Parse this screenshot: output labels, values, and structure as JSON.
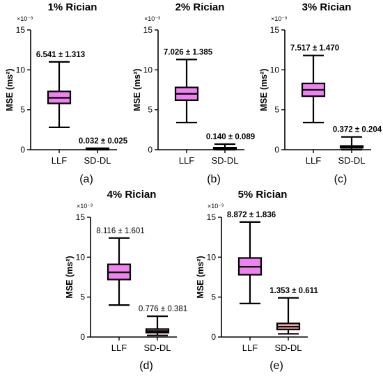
{
  "chart_data": [
    {
      "type": "boxplot",
      "title": "1% Rician",
      "caption": "(a)",
      "ylabel": "MSE (ms²)",
      "exponent_label": "×10⁻³",
      "ylim": [
        0,
        15
      ],
      "yticks": [
        "0",
        "5",
        "10",
        "15"
      ],
      "categories": [
        "LLF",
        "SD-DL"
      ],
      "annotations_bold": true,
      "boxes": [
        {
          "category": "LLF",
          "whisker_low": 2.8,
          "q1": 5.8,
          "median": 6.5,
          "q3": 7.3,
          "whisker_high": 11.0,
          "annotation": "6.541 ± 1.313"
        },
        {
          "category": "SD-DL",
          "whisker_low": 0.0,
          "q1": 0.01,
          "median": 0.03,
          "q3": 0.05,
          "whisker_high": 0.16,
          "annotation": "0.032 ± 0.025"
        }
      ]
    },
    {
      "type": "boxplot",
      "title": "2% Rician",
      "caption": "(b)",
      "ylabel": "MSE (ms²)",
      "exponent_label": "×10⁻³",
      "ylim": [
        0,
        15
      ],
      "yticks": [
        "0",
        "5",
        "10",
        "15"
      ],
      "categories": [
        "LLF",
        "SD-DL"
      ],
      "annotations_bold": true,
      "boxes": [
        {
          "category": "LLF",
          "whisker_low": 3.4,
          "q1": 6.2,
          "median": 7.0,
          "q3": 7.8,
          "whisker_high": 11.3,
          "annotation": "7.026 ± 1.385"
        },
        {
          "category": "SD-DL",
          "whisker_low": 0.0,
          "q1": 0.08,
          "median": 0.13,
          "q3": 0.2,
          "whisker_high": 0.7,
          "annotation": "0.140 ± 0.089"
        }
      ]
    },
    {
      "type": "boxplot",
      "title": "3% Rician",
      "caption": "(c)",
      "ylabel": "MSE (ms²)",
      "exponent_label": "×10⁻³",
      "ylim": [
        0,
        15
      ],
      "yticks": [
        "0",
        "5",
        "10",
        "15"
      ],
      "categories": [
        "LLF",
        "SD-DL"
      ],
      "annotations_bold": true,
      "boxes": [
        {
          "category": "LLF",
          "whisker_low": 3.4,
          "q1": 6.7,
          "median": 7.5,
          "q3": 8.3,
          "whisker_high": 11.8,
          "annotation": "7.517 ± 1.470"
        },
        {
          "category": "SD-DL",
          "whisker_low": 0.0,
          "q1": 0.24,
          "median": 0.33,
          "q3": 0.47,
          "whisker_high": 1.6,
          "annotation": "0.372 ± 0.204"
        }
      ]
    },
    {
      "type": "boxplot",
      "title": "4% Rician",
      "caption": "(d)",
      "ylabel": "MSE (ms²)",
      "exponent_label": "×10⁻³",
      "ylim": [
        0,
        15
      ],
      "yticks": [
        "0",
        "5",
        "10",
        "15"
      ],
      "categories": [
        "LLF",
        "SD-DL"
      ],
      "annotations_bold": false,
      "boxes": [
        {
          "category": "LLF",
          "whisker_low": 4.0,
          "q1": 7.2,
          "median": 8.1,
          "q3": 9.1,
          "whisker_high": 12.4,
          "annotation": "8.116 ± 1.601"
        },
        {
          "category": "SD-DL",
          "whisker_low": 0.2,
          "q1": 0.55,
          "median": 0.75,
          "q3": 1.0,
          "whisker_high": 2.6,
          "annotation": "0.776 ± 0.381"
        }
      ]
    },
    {
      "type": "boxplot",
      "title": "5% Rician",
      "caption": "(e)",
      "ylabel": "MSE (ms²)",
      "exponent_label": "×10⁻³",
      "ylim": [
        0,
        15
      ],
      "yticks": [
        "0",
        "5",
        "10",
        "15"
      ],
      "categories": [
        "LLF",
        "SD-DL"
      ],
      "annotations_bold": true,
      "boxes": [
        {
          "category": "LLF",
          "whisker_low": 4.2,
          "q1": 7.8,
          "median": 8.8,
          "q3": 9.9,
          "whisker_high": 14.4,
          "annotation": "8.872 ± 1.836"
        },
        {
          "category": "SD-DL",
          "whisker_low": 0.4,
          "q1": 0.95,
          "median": 1.3,
          "q3": 1.7,
          "whisker_high": 4.9,
          "annotation": "1.353 ± 0.611"
        }
      ]
    }
  ],
  "colors": {
    "llf_fill": "#EE82EE",
    "sddl_fill": "#F4A6A6",
    "stroke": "#000000",
    "median": "#000000"
  }
}
